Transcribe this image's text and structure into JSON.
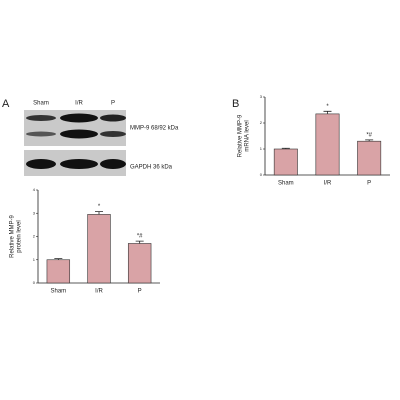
{
  "panels": [
    "A",
    "B"
  ],
  "blot": {
    "lanes": [
      "Sham",
      "I/R",
      "P"
    ],
    "bands": [
      "MMP-9  68/92 kDa",
      "GAPDH  36 kDa"
    ]
  },
  "chart_data": [
    {
      "type": "bar",
      "y_label": [
        "Relative MMP-9",
        "protein level"
      ],
      "categories": [
        "Sham",
        "I/R",
        "P"
      ],
      "values": [
        1.0,
        2.95,
        1.7
      ],
      "errors": [
        0.05,
        0.12,
        0.1
      ],
      "value_annotations": [
        null,
        "*",
        "*#"
      ],
      "color": "#d9a3a6",
      "ylim": [
        0,
        4
      ],
      "yticks": [
        0,
        1,
        2,
        3,
        4
      ]
    },
    {
      "type": "bar",
      "y_label": [
        "Relative MMP-9",
        "mRNA level"
      ],
      "categories": [
        "Sham",
        "I/R",
        "P"
      ],
      "values": [
        1.0,
        2.35,
        1.3
      ],
      "errors": [
        0.03,
        0.1,
        0.05
      ],
      "value_annotations": [
        null,
        "*",
        "*#"
      ],
      "color": "#d9a3a6",
      "ylim": [
        0,
        3
      ],
      "yticks": [
        0,
        1,
        2,
        3
      ]
    }
  ]
}
